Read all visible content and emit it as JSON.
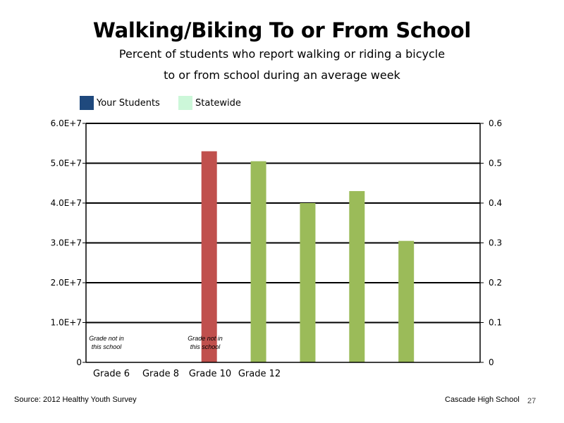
{
  "chart_data": {
    "type": "bar",
    "title": "Walking/Biking To or From School",
    "subtitle_lines": [
      "Percent of students who report walking or riding a bicycle",
      "to or from school during an average week"
    ],
    "categories": [
      "Grade 6",
      "Grade 8",
      "Grade 10",
      "Grade 12"
    ],
    "series": [
      {
        "name": "Your Students",
        "color": "#1f497d",
        "values": [
          null,
          null,
          null,
          null
        ]
      },
      {
        "name": "Statewide",
        "color": "#ccf7d9",
        "values": [
          null,
          null,
          null,
          null
        ]
      }
    ],
    "unlabeled_bars": [
      {
        "axis": "left",
        "value": 53000000,
        "color": "#c0504d"
      },
      {
        "axis": "right",
        "value": 0.505,
        "color": "#9bbb59"
      },
      {
        "axis": "right",
        "value": 0.4,
        "color": "#9bbb59"
      },
      {
        "axis": "right",
        "value": 0.43,
        "color": "#9bbb59"
      },
      {
        "axis": "right",
        "value": 0.305,
        "color": "#9bbb59"
      }
    ],
    "left_axis": {
      "ylim": [
        0,
        60000000
      ],
      "tick_labels": [
        "0",
        "1.0E+7",
        "2.0E+7",
        "3.0E+7",
        "4.0E+7",
        "5.0E+7",
        "6.0E+7"
      ]
    },
    "right_axis": {
      "ylim": [
        0,
        0.6
      ],
      "tick_labels": [
        "0",
        "0.1",
        "0.2",
        "0.3",
        "0.4",
        "0.5",
        "0.6"
      ]
    },
    "annotations": [
      {
        "category": "Grade 6",
        "lines": [
          "Grade not in",
          "this school"
        ]
      },
      {
        "category": "Grade 10",
        "lines": [
          "Grade not in",
          "this school"
        ]
      }
    ],
    "grid": true,
    "legend_position": "top-left"
  },
  "footer": {
    "source": "Source: 2012 Healthy Youth Survey",
    "school": "Cascade High School",
    "page_number": "27"
  }
}
